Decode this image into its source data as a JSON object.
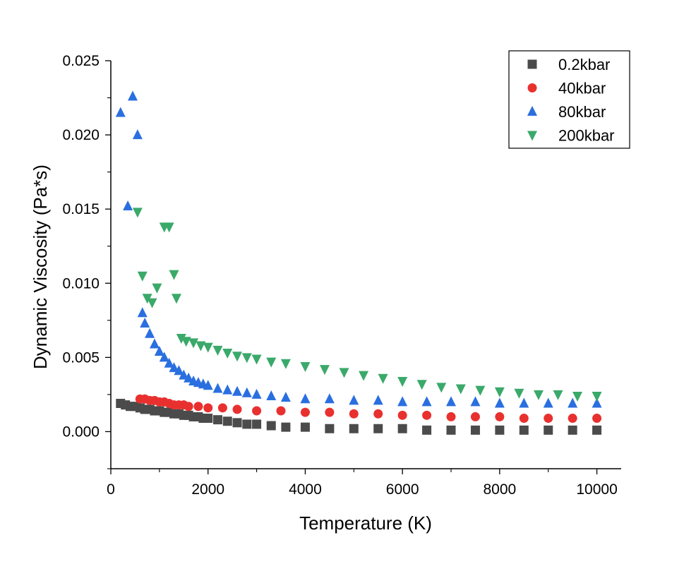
{
  "chart_data": {
    "type": "scatter",
    "title": "",
    "xlabel": "Temperature (K)",
    "ylabel": "Dynamic Viscosity (Pa*s)",
    "xlim": [
      0,
      10500
    ],
    "ylim": [
      -0.0025,
      0.025
    ],
    "xticks": [
      0,
      2000,
      4000,
      6000,
      8000,
      10000
    ],
    "xtick_labels": [
      "0",
      "2000",
      "4000",
      "6000",
      "8000",
      "10000"
    ],
    "yticks": [
      0.0,
      0.005,
      0.01,
      0.015,
      0.02,
      0.025
    ],
    "ytick_labels": [
      "0.000",
      "0.005",
      "0.010",
      "0.015",
      "0.020",
      "0.025"
    ],
    "grid": false,
    "legend_position": "top-right",
    "series": [
      {
        "name": "0.2kbar",
        "marker": "square",
        "color": "#4b4b4b",
        "x": [
          200,
          300,
          400,
          500,
          600,
          700,
          800,
          900,
          1000,
          1100,
          1200,
          1300,
          1400,
          1500,
          1600,
          1700,
          1800,
          1900,
          2000,
          2200,
          2400,
          2600,
          2800,
          3000,
          3300,
          3600,
          4000,
          4500,
          5000,
          5500,
          6000,
          6500,
          7000,
          7500,
          8000,
          8500,
          9000,
          9500,
          10000
        ],
        "y": [
          0.0019,
          0.0018,
          0.0017,
          0.0017,
          0.0016,
          0.0015,
          0.0015,
          0.0014,
          0.0014,
          0.0013,
          0.0013,
          0.0012,
          0.0012,
          0.0011,
          0.0011,
          0.001,
          0.001,
          0.0009,
          0.0009,
          0.0008,
          0.0007,
          0.0006,
          0.0005,
          0.0005,
          0.0004,
          0.0003,
          0.0003,
          0.0002,
          0.0002,
          0.0002,
          0.0002,
          0.0001,
          0.0001,
          0.0001,
          0.0001,
          0.0001,
          0.0001,
          0.0001,
          0.0001
        ]
      },
      {
        "name": "40kbar",
        "marker": "circle",
        "color": "#e8312f",
        "x": [
          600,
          700,
          800,
          900,
          1000,
          1100,
          1200,
          1300,
          1400,
          1500,
          1600,
          1800,
          2000,
          2300,
          2600,
          3000,
          3500,
          4000,
          4500,
          5000,
          5500,
          6000,
          6500,
          7000,
          7500,
          8000,
          8500,
          9000,
          9500,
          10000
        ],
        "y": [
          0.0022,
          0.0022,
          0.0021,
          0.0021,
          0.002,
          0.002,
          0.0019,
          0.0018,
          0.0018,
          0.0018,
          0.0017,
          0.0017,
          0.0016,
          0.0016,
          0.0015,
          0.0014,
          0.0014,
          0.0013,
          0.0013,
          0.0012,
          0.0012,
          0.0011,
          0.0011,
          0.001,
          0.001,
          0.001,
          0.0009,
          0.0009,
          0.0009,
          0.0009
        ]
      },
      {
        "name": "80kbar",
        "marker": "triangle-up",
        "color": "#2a6fe0",
        "x": [
          200,
          350,
          450,
          550,
          650,
          700,
          800,
          900,
          1000,
          1100,
          1200,
          1300,
          1400,
          1500,
          1600,
          1700,
          1800,
          1900,
          2000,
          2200,
          2400,
          2600,
          2800,
          3000,
          3300,
          3600,
          4000,
          4500,
          5000,
          5500,
          6000,
          6500,
          7000,
          7500,
          8000,
          8500,
          9000,
          9500,
          10000
        ],
        "y": [
          0.0215,
          0.0152,
          0.0226,
          0.02,
          0.008,
          0.0073,
          0.0066,
          0.0059,
          0.0054,
          0.005,
          0.0046,
          0.0043,
          0.0041,
          0.0038,
          0.0036,
          0.0034,
          0.0033,
          0.0032,
          0.0031,
          0.0029,
          0.0028,
          0.0027,
          0.0026,
          0.0025,
          0.0024,
          0.0023,
          0.0022,
          0.0022,
          0.0021,
          0.0021,
          0.002,
          0.002,
          0.002,
          0.002,
          0.0019,
          0.0019,
          0.0019,
          0.0019,
          0.0019
        ]
      },
      {
        "name": "200kbar",
        "marker": "triangle-down",
        "color": "#3aa96a",
        "x": [
          550,
          650,
          750,
          850,
          950,
          1100,
          1200,
          1300,
          1350,
          1450,
          1550,
          1700,
          1850,
          2000,
          2200,
          2400,
          2600,
          2800,
          3000,
          3300,
          3600,
          4000,
          4400,
          4800,
          5200,
          5600,
          6000,
          6400,
          6800,
          7200,
          7600,
          8000,
          8400,
          8800,
          9200,
          9600,
          10000
        ],
        "y": [
          0.0148,
          0.0105,
          0.009,
          0.0087,
          0.0097,
          0.0138,
          0.0138,
          0.0106,
          0.009,
          0.0063,
          0.0061,
          0.006,
          0.0058,
          0.0057,
          0.0055,
          0.0053,
          0.0051,
          0.005,
          0.0049,
          0.0047,
          0.0046,
          0.0044,
          0.0042,
          0.004,
          0.0038,
          0.0036,
          0.0034,
          0.0032,
          0.003,
          0.0029,
          0.0028,
          0.0027,
          0.0026,
          0.0025,
          0.0025,
          0.0024,
          0.0024
        ]
      }
    ]
  }
}
